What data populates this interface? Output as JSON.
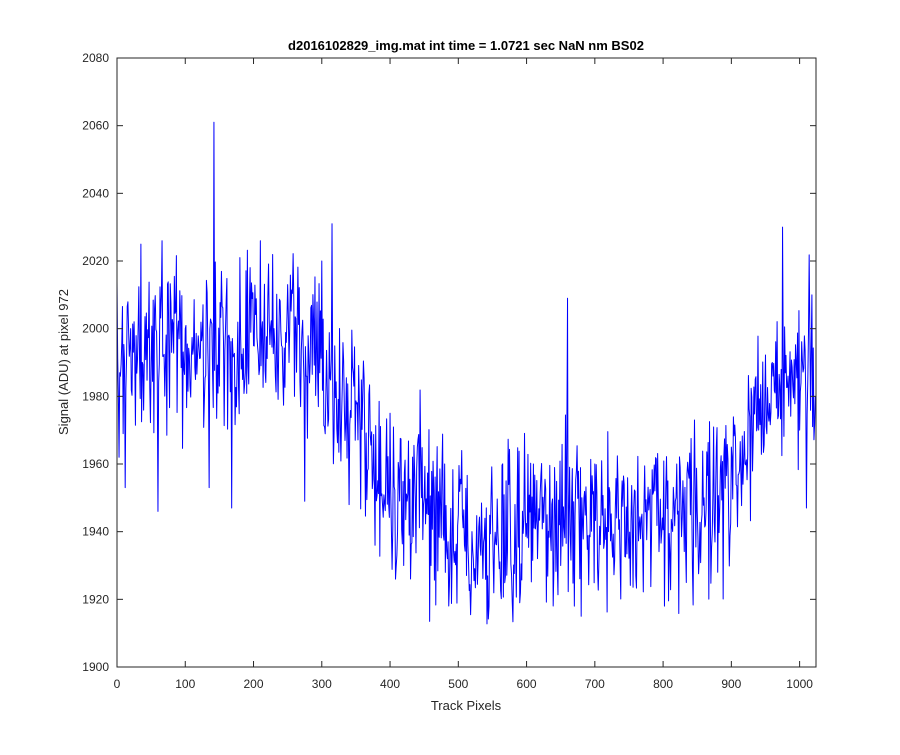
{
  "chart_data": {
    "type": "line",
    "title": "d2016102829_img.mat int time = 1.0721 sec  NaN nm BS02",
    "xlabel": "Track Pixels",
    "ylabel": "Signal (ADU) at pixel 972",
    "xlim": [
      0,
      1024
    ],
    "ylim": [
      1900,
      2080
    ],
    "xticks": [
      0,
      100,
      200,
      300,
      400,
      500,
      600,
      700,
      800,
      900,
      1000
    ],
    "yticks": [
      1900,
      1920,
      1940,
      1960,
      1980,
      2000,
      2020,
      2040,
      2060,
      2080
    ],
    "grid": false,
    "legend": "none",
    "line_color": "#0000ff",
    "series": [
      {
        "description": "blue noisy trace, one value per track pixel (1024 points); anchor values (x, y) sampled from the visible envelope and notable spikes",
        "anchors": [
          [
            0,
            2014
          ],
          [
            3,
            1962
          ],
          [
            12,
            1953
          ],
          [
            20,
            2000
          ],
          [
            35,
            2025
          ],
          [
            50,
            1990
          ],
          [
            60,
            1946
          ],
          [
            66,
            2026
          ],
          [
            80,
            1993
          ],
          [
            100,
            2000
          ],
          [
            120,
            1995
          ],
          [
            135,
            1953
          ],
          [
            142,
            2061
          ],
          [
            150,
            1983
          ],
          [
            168,
            1947
          ],
          [
            180,
            2021
          ],
          [
            200,
            1995
          ],
          [
            210,
            2026
          ],
          [
            230,
            2000
          ],
          [
            250,
            2013
          ],
          [
            260,
            1980
          ],
          [
            275,
            1949
          ],
          [
            300,
            2020
          ],
          [
            315,
            2031
          ],
          [
            340,
            1948
          ],
          [
            360,
            1981
          ],
          [
            378,
            1936
          ],
          [
            400,
            1975
          ],
          [
            420,
            1930
          ],
          [
            430,
            1926
          ],
          [
            440,
            1965
          ],
          [
            460,
            1930
          ],
          [
            480,
            1960
          ],
          [
            500,
            1945
          ],
          [
            520,
            1940
          ],
          [
            545,
            1918
          ],
          [
            570,
            1955
          ],
          [
            590,
            1919
          ],
          [
            610,
            1960
          ],
          [
            630,
            1945
          ],
          [
            650,
            1930
          ],
          [
            660,
            2009
          ],
          [
            670,
            1918
          ],
          [
            680,
            1915
          ],
          [
            700,
            1960
          ],
          [
            720,
            1940
          ],
          [
            740,
            1955
          ],
          [
            760,
            1927
          ],
          [
            780,
            1950
          ],
          [
            802,
            1918
          ],
          [
            820,
            1960
          ],
          [
            840,
            1945
          ],
          [
            860,
            1950
          ],
          [
            880,
            1928
          ],
          [
            900,
            1965
          ],
          [
            920,
            1960
          ],
          [
            940,
            1970
          ],
          [
            960,
            1990
          ],
          [
            975,
            2030
          ],
          [
            985,
            1985
          ],
          [
            1000,
            1970
          ],
          [
            1010,
            1947
          ],
          [
            1018,
            2010
          ],
          [
            1023,
            1980
          ]
        ]
      }
    ]
  }
}
